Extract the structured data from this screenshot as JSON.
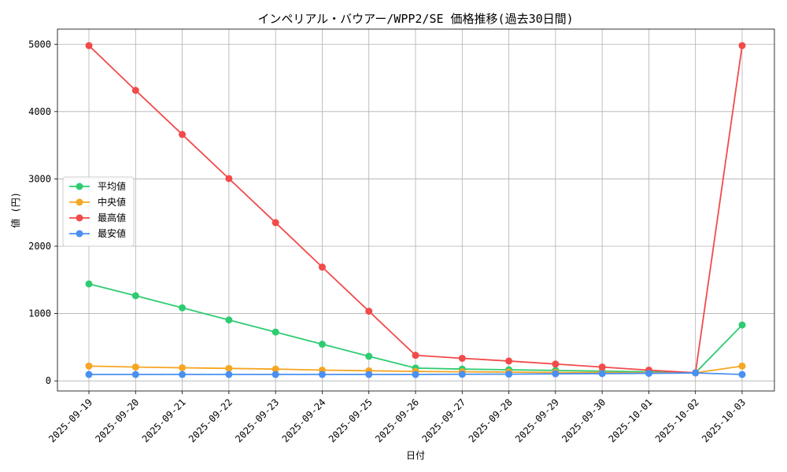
{
  "chart_data": {
    "type": "line",
    "title": "インペリアル・バウアー/WPP2/SE 価格推移(過去30日間)",
    "xlabel": "日付",
    "ylabel": "値 (円)",
    "categories": [
      "2025-09-19",
      "2025-09-20",
      "2025-09-21",
      "2025-09-22",
      "2025-09-23",
      "2025-09-24",
      "2025-09-25",
      "2025-09-26",
      "2025-09-27",
      "2025-09-28",
      "2025-09-29",
      "2025-09-30",
      "2025-10-01",
      "2025-10-02",
      "2025-10-03"
    ],
    "ylim": [
      -150,
      5225
    ],
    "yticks": [
      0,
      1000,
      2000,
      3000,
      4000,
      5000
    ],
    "grid": true,
    "legend_position": "center-left",
    "series": [
      {
        "name": "平均値",
        "color": "#2ecc71",
        "values": [
          1440,
          1265,
          1085,
          905,
          725,
          545,
          365,
          190,
          175,
          165,
          155,
          145,
          135,
          120,
          830
        ]
      },
      {
        "name": "中央値",
        "color": "#f5a623",
        "values": [
          220,
          205,
          195,
          185,
          175,
          160,
          150,
          140,
          135,
          130,
          125,
          125,
          120,
          120,
          220
        ]
      },
      {
        "name": "最高値",
        "color": "#f24a4a",
        "values": [
          4980,
          4315,
          3660,
          3005,
          2350,
          1690,
          1035,
          380,
          335,
          295,
          250,
          205,
          160,
          120,
          4980
        ]
      },
      {
        "name": "最安値",
        "color": "#4a90f2",
        "values": [
          95,
          95,
          95,
          95,
          95,
          95,
          95,
          95,
          98,
          100,
          105,
          108,
          112,
          118,
          95
        ]
      }
    ]
  }
}
